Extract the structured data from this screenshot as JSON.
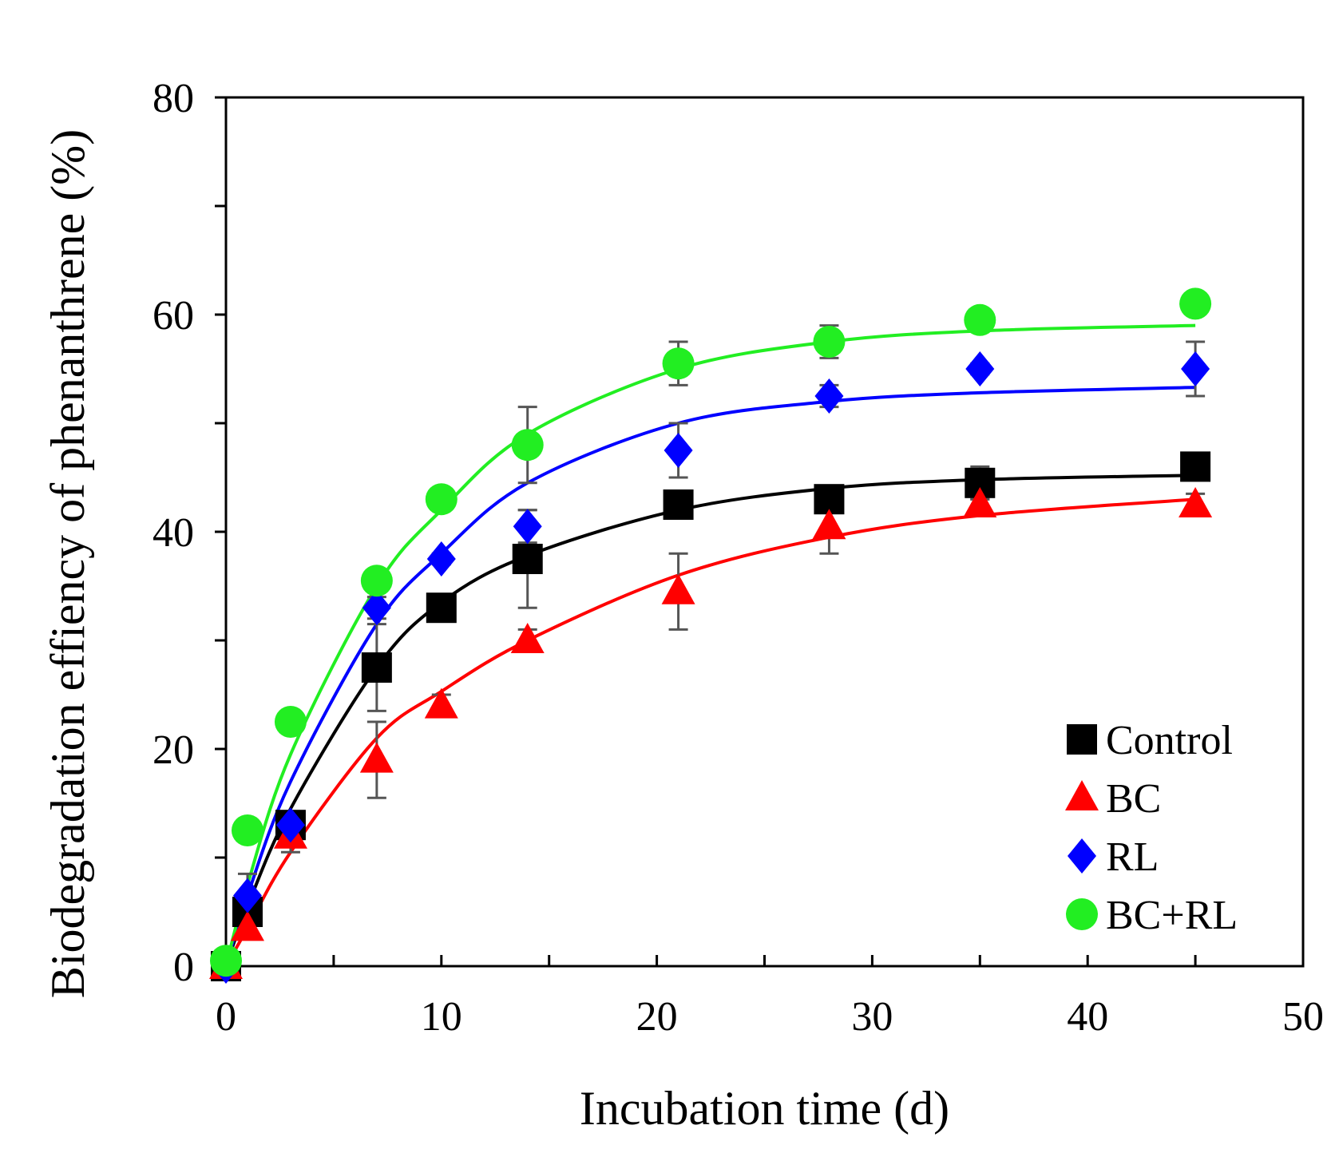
{
  "chart_data": {
    "type": "scatter",
    "title": "",
    "xlabel": "Incubation time (d)",
    "ylabel": "Biodegradation effiency of phenanthrene (%)",
    "xlim": [
      0,
      50
    ],
    "ylim": [
      0,
      80
    ],
    "x_ticks": [
      0,
      10,
      20,
      30,
      40,
      50
    ],
    "y_ticks": [
      0,
      20,
      40,
      60,
      80
    ],
    "x_tick_labels": [
      "0",
      "10",
      "20",
      "30",
      "40",
      "50"
    ],
    "y_tick_labels": [
      "0",
      "20",
      "40",
      "60",
      "80"
    ],
    "grid": false,
    "legend_position": "bottom-right",
    "x": [
      0,
      1,
      3,
      7,
      10,
      14,
      21,
      28,
      35,
      45
    ],
    "series": [
      {
        "name": "Control",
        "color": "#000000",
        "marker": "square",
        "values": [
          0,
          5,
          13,
          27.5,
          33,
          37.5,
          42.5,
          43,
          44.5,
          46
        ],
        "errors": [
          0,
          1,
          1,
          4,
          0.5,
          4.5,
          0.5,
          0.5,
          1.5,
          0.5
        ],
        "fit": [
          0,
          5.5,
          14.5,
          27.5,
          33.5,
          37.8,
          42,
          44,
          44.8,
          45.2
        ]
      },
      {
        "name": "BC",
        "color": "#ff0000",
        "marker": "triangle",
        "values": [
          0,
          3.5,
          12,
          19,
          24,
          30,
          34.5,
          40.5,
          42.5,
          42.5
        ],
        "errors": [
          0,
          0.5,
          1.5,
          3.5,
          1,
          1,
          3.5,
          2.5,
          0.5,
          1
        ],
        "fit": [
          0,
          3.5,
          10.5,
          21,
          25.3,
          30,
          36,
          39.5,
          41.5,
          43
        ]
      },
      {
        "name": "RL",
        "color": "#0000ff",
        "marker": "diamond",
        "values": [
          0,
          6.5,
          13,
          33,
          37.5,
          40.5,
          47.5,
          52.5,
          55,
          55
        ],
        "errors": [
          0,
          2,
          1,
          1,
          0.5,
          1.5,
          2.5,
          1,
          0.5,
          2.5
        ],
        "fit": [
          0,
          6.5,
          17,
          31.5,
          38,
          44.5,
          50,
          52,
          52.8,
          53.3
        ]
      },
      {
        "name": "BC+RL",
        "color": "#22ee22",
        "marker": "circle",
        "values": [
          0.5,
          12.5,
          22.5,
          35.5,
          43,
          48,
          55.5,
          57.5,
          59.5,
          61
        ],
        "errors": [
          0,
          0.5,
          1,
          1,
          0.5,
          3.5,
          2,
          1.5,
          0.5,
          0.5
        ],
        "fit": [
          0,
          7.5,
          19.5,
          35,
          42,
          49,
          55,
          57.5,
          58.5,
          59
        ]
      }
    ]
  }
}
